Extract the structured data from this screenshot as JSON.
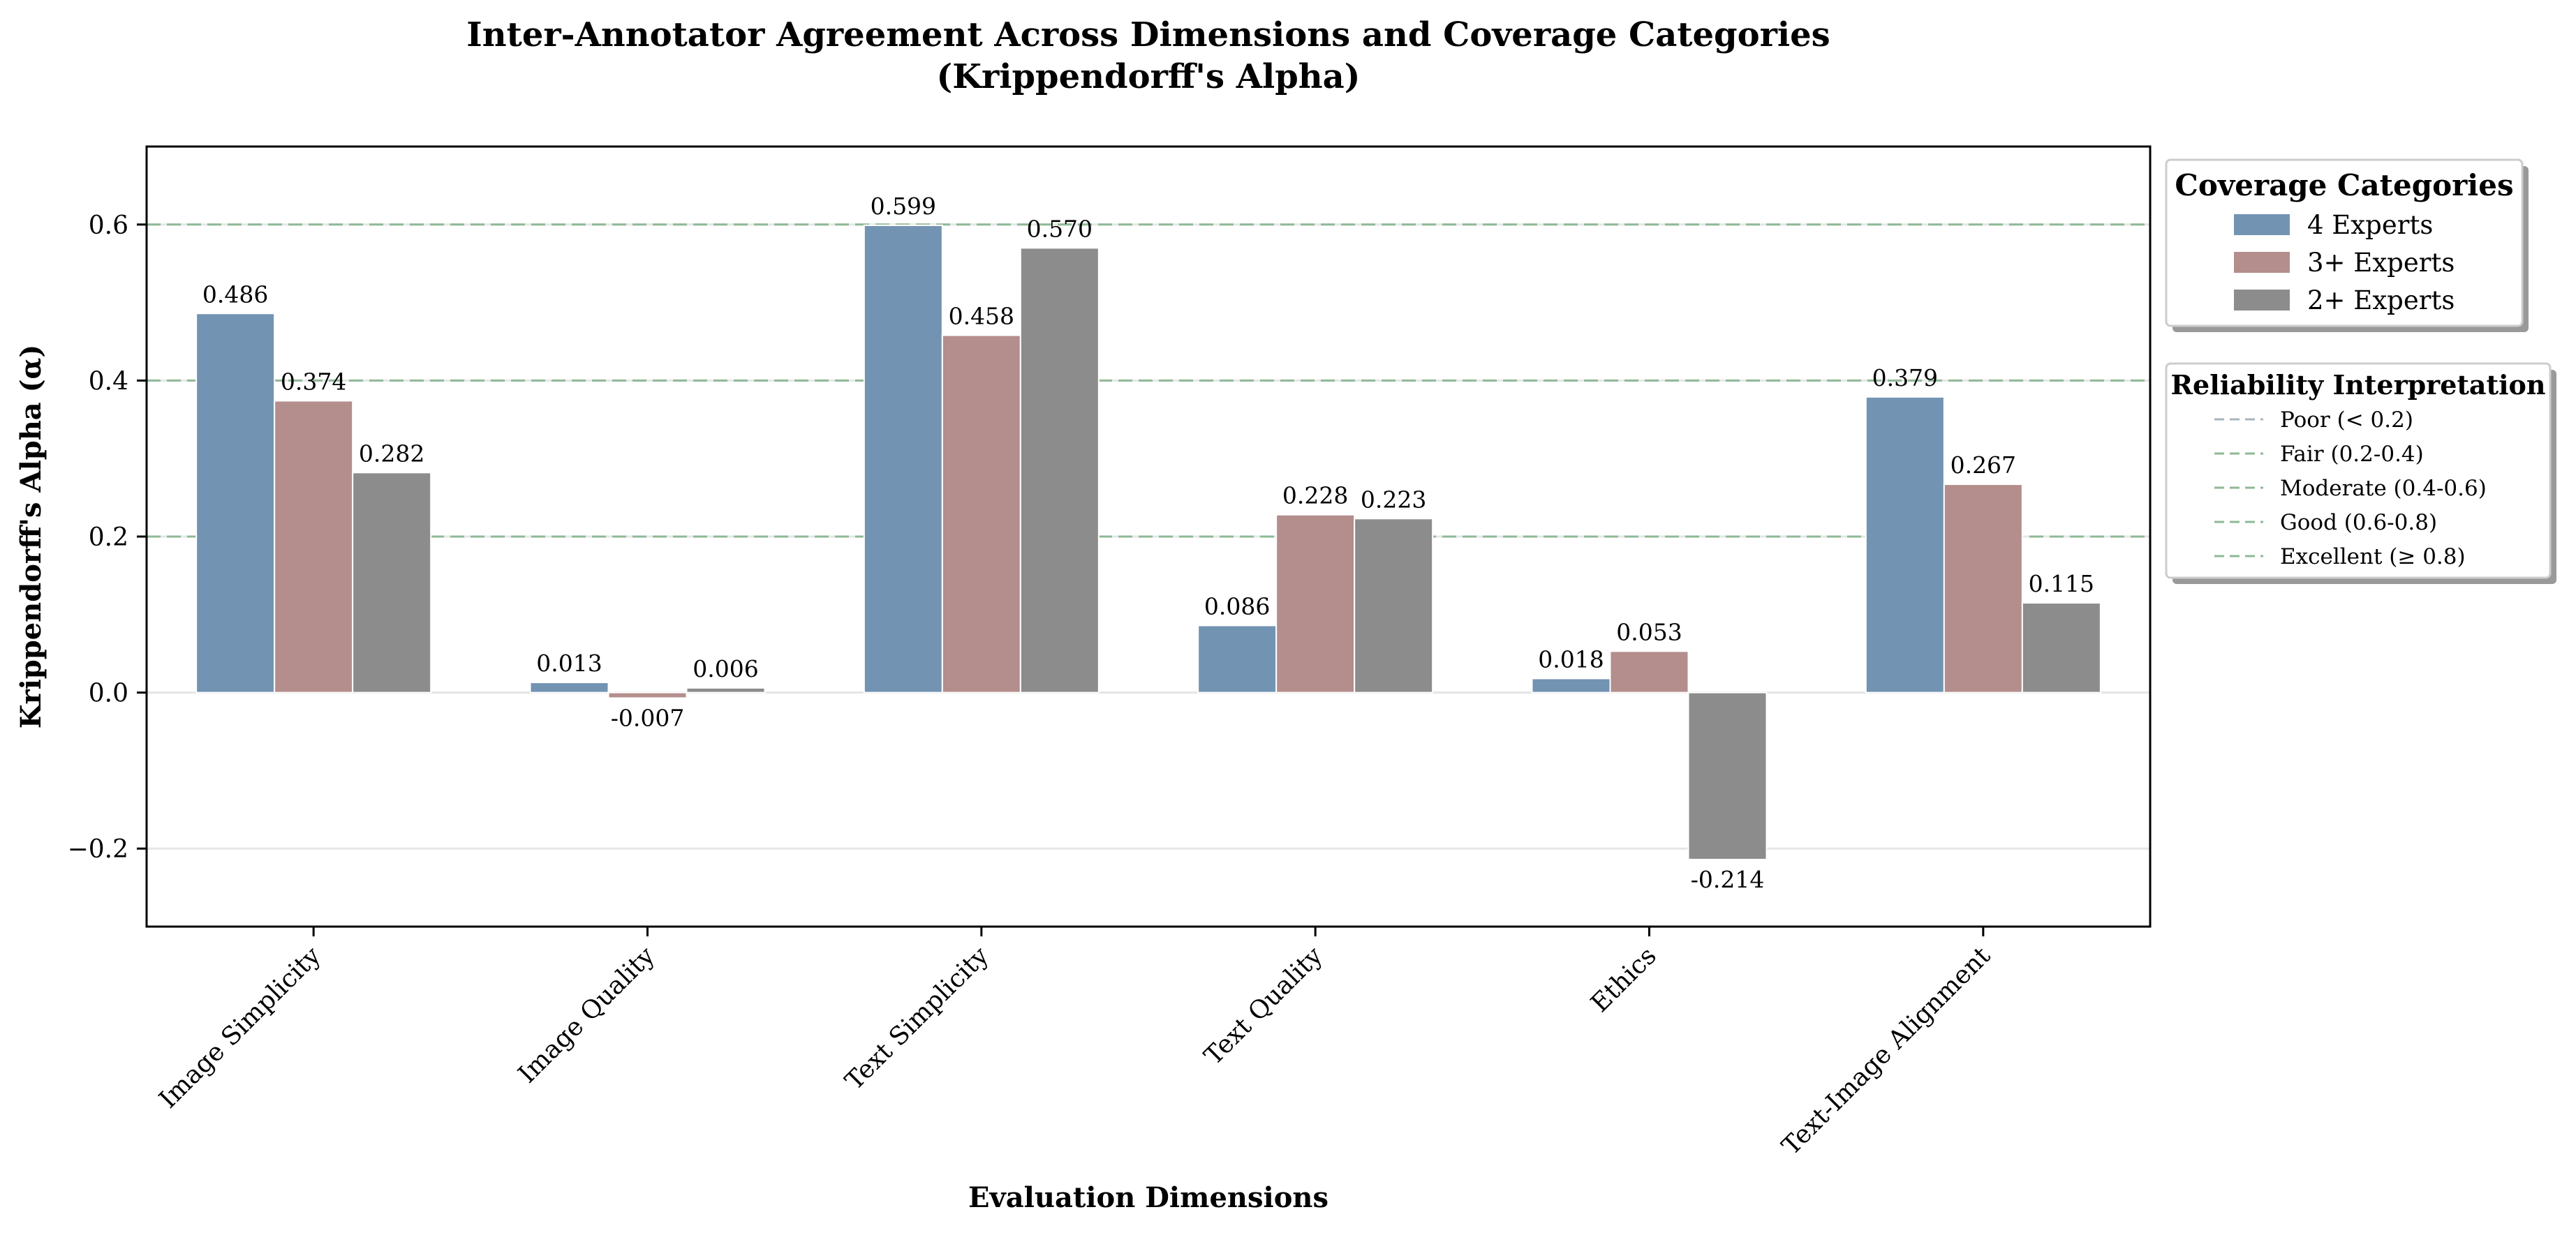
{
  "chart_data": {
    "type": "bar",
    "title_line1": "Inter-Annotator Agreement Across Dimensions and Coverage Categories",
    "title_line2": "(Krippendorff's Alpha)",
    "xlabel": "Evaluation Dimensions",
    "ylabel": "Krippendorff's Alpha (α)",
    "ylim": [
      -0.3,
      0.7
    ],
    "yticks": [
      -0.2,
      0.0,
      0.2,
      0.4,
      0.6
    ],
    "ytick_labels": [
      "−0.2",
      "0.0",
      "0.2",
      "0.4",
      "0.6"
    ],
    "categories": [
      "Image Simplicity",
      "Image Quality",
      "Text Simplicity",
      "Text Quality",
      "Ethics",
      "Text-Image Alignment"
    ],
    "series": [
      {
        "name": "4 Experts",
        "color": "#7393b3",
        "values": [
          0.486,
          0.013,
          0.599,
          0.086,
          0.018,
          0.379
        ],
        "labels": [
          "0.486",
          "0.013",
          "0.599",
          "0.086",
          "0.018",
          "0.379"
        ]
      },
      {
        "name": "3+ Experts",
        "color": "#b38e8c",
        "values": [
          0.374,
          -0.007,
          0.458,
          0.228,
          0.053,
          0.267
        ],
        "labels": [
          "0.374",
          "-0.007",
          "0.458",
          "0.228",
          "0.053",
          "0.267"
        ]
      },
      {
        "name": "2+ Experts",
        "color": "#8c8c8c",
        "values": [
          0.282,
          0.006,
          0.57,
          0.223,
          -0.214,
          0.115
        ],
        "labels": [
          "0.282",
          "0.006",
          "0.570",
          "0.223",
          "-0.214",
          "0.115"
        ]
      }
    ],
    "reference_lines": [
      0.2,
      0.4,
      0.6
    ],
    "reference_line_color": "#8fb896",
    "grid": "horizontal-light",
    "legend_placement": "outside-right",
    "legend": {
      "title": "Coverage Categories",
      "items": [
        "4 Experts",
        "3+ Experts",
        "2+ Experts"
      ]
    },
    "reliability_legend": {
      "title": "Reliability Interpretation",
      "items": [
        "Poor (< 0.2)",
        "Fair (0.2-0.4)",
        "Moderate (0.4-0.6)",
        "Good (0.6-0.8)",
        "Excellent (≥ 0.8)"
      ],
      "colors": [
        "#a8b4bc",
        "#8fb896",
        "#8fb896",
        "#8fb896",
        "#8fb896"
      ]
    }
  }
}
